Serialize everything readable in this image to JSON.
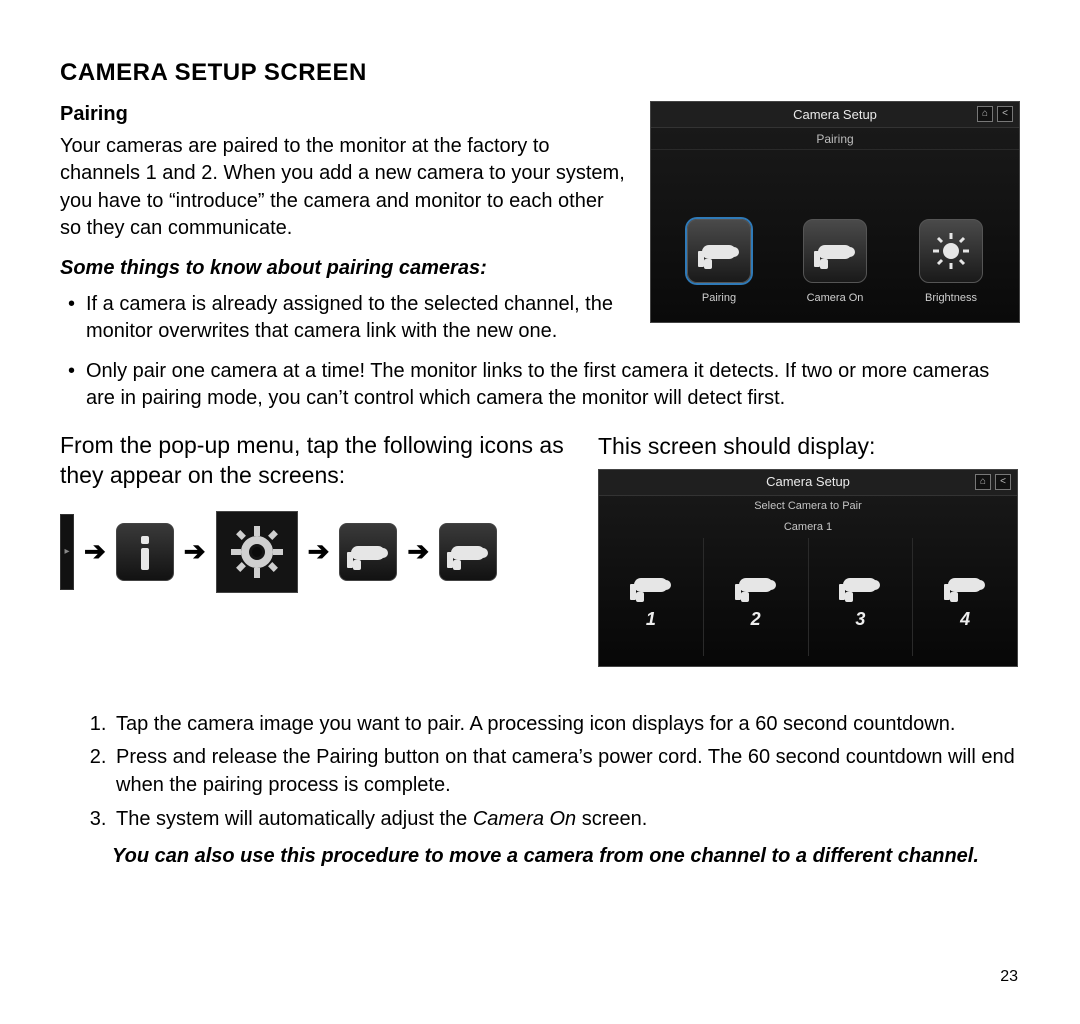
{
  "heading": "CAMERA SETUP SCREEN",
  "section_title": "Pairing",
  "intro_para": "Your cameras are paired to the monitor at the factory to channels 1 and 2.  When you add a new camera to your system, you have to “introduce” the camera and monitor to each other so they can communicate.",
  "subhead": "Some things to know about pairing cameras:",
  "bullets": [
    "If a camera is already assigned to the selected channel, the monitor overwrites that camera link with the new one.",
    "Only pair one camera at a time! The monitor links to the first camera it detects. If two or more cameras are in pairing mode, you can’t control which camera the monitor will detect first."
  ],
  "panel1": {
    "title": "Camera Setup",
    "sub": "Pairing",
    "options": [
      {
        "label": "Pairing",
        "icon": "camera",
        "selected": true
      },
      {
        "label": "Camera On",
        "icon": "camera",
        "selected": false
      },
      {
        "label": "Brightness",
        "icon": "brightness",
        "selected": false
      }
    ]
  },
  "mid_left": "From the pop-up menu, tap the following icons as they appear on the screens:",
  "mid_right_title": "This screen should display:",
  "panel2": {
    "title": "Camera Setup",
    "sub1": "Select Camera to Pair",
    "sub2": "Camera 1",
    "cams": [
      "1",
      "2",
      "3",
      "4"
    ]
  },
  "steps": [
    "Tap the camera image you want to pair. A processing icon displays for a 60 second countdown.",
    "Press and release the Pairing button on that camera’s power cord. The 60 second countdown will end when the pairing process is complete.",
    "The system will automatically adjust the <i>Camera On</i> screen."
  ],
  "closing": "You can also use this procedure to move a camera from one channel to a different channel.",
  "page_number": "23",
  "colors": {
    "text": "#000000",
    "panel_bg_top": "#1b1b1b",
    "panel_bg_bottom": "#0a0a0a",
    "panel_border": "#444444",
    "highlight": "#2f7ab8"
  }
}
